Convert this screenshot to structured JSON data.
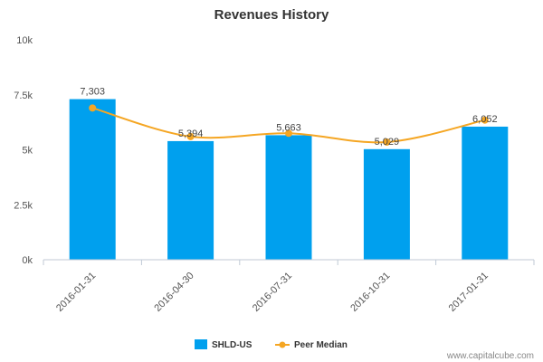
{
  "chart_data": {
    "type": "bar",
    "title": "Revenues History",
    "categories": [
      "2016-01-31",
      "2016-04-30",
      "2016-07-31",
      "2016-10-31",
      "2017-01-31"
    ],
    "series": [
      {
        "name": "SHLD-US",
        "type": "bar",
        "color": "#00a0ee",
        "values": [
          7303,
          5394,
          5663,
          5029,
          6052
        ],
        "labels": [
          "7,303",
          "5,394",
          "5,663",
          "5,029",
          "6,052"
        ]
      },
      {
        "name": "Peer Median",
        "type": "line",
        "color": "#f5a623",
        "values": [
          6900,
          5600,
          5750,
          5350,
          6350
        ]
      }
    ],
    "ylim": [
      0,
      10000
    ],
    "yticks": [
      0,
      2500,
      5000,
      7500,
      10000
    ],
    "ytick_labels": [
      "0k",
      "2.5k",
      "5k",
      "7.5k",
      "10k"
    ],
    "grid": false,
    "legend": "bottom"
  },
  "credit": "www.capitalcube.com"
}
